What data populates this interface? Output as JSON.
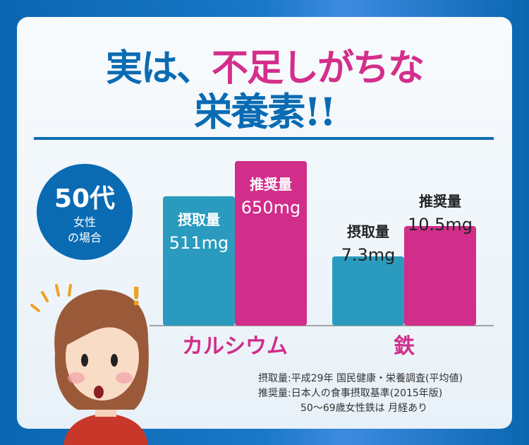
{
  "title": {
    "line1_a": "実は、",
    "line1_b": "不足しがちな",
    "line2": "栄養素!!"
  },
  "badge": {
    "age": "50代",
    "line1": "女性",
    "line2": "の場合"
  },
  "colors": {
    "intake": "#2a9bbf",
    "recommended": "#d12d8a",
    "brand": "#0a6bb3"
  },
  "chart_data": {
    "type": "bar",
    "categories": [
      "カルシウム",
      "鉄"
    ],
    "series": [
      {
        "name": "摂取量",
        "values": [
          511,
          7.3
        ],
        "labels": [
          "511mg",
          "7.3mg"
        ]
      },
      {
        "name": "推奨量",
        "values": [
          650,
          10.5
        ],
        "labels": [
          "650mg",
          "10.5mg"
        ]
      }
    ],
    "ylabel": "",
    "xlabel": "",
    "grid": false
  },
  "footnote": {
    "line1": "摂取量:平成29年 国民健康・栄養調査(平均値)",
    "line2": "推奨量:日本人の食事摂取基準(2015年版)",
    "line3": "50〜69歳女性鉄は 月経あり"
  }
}
